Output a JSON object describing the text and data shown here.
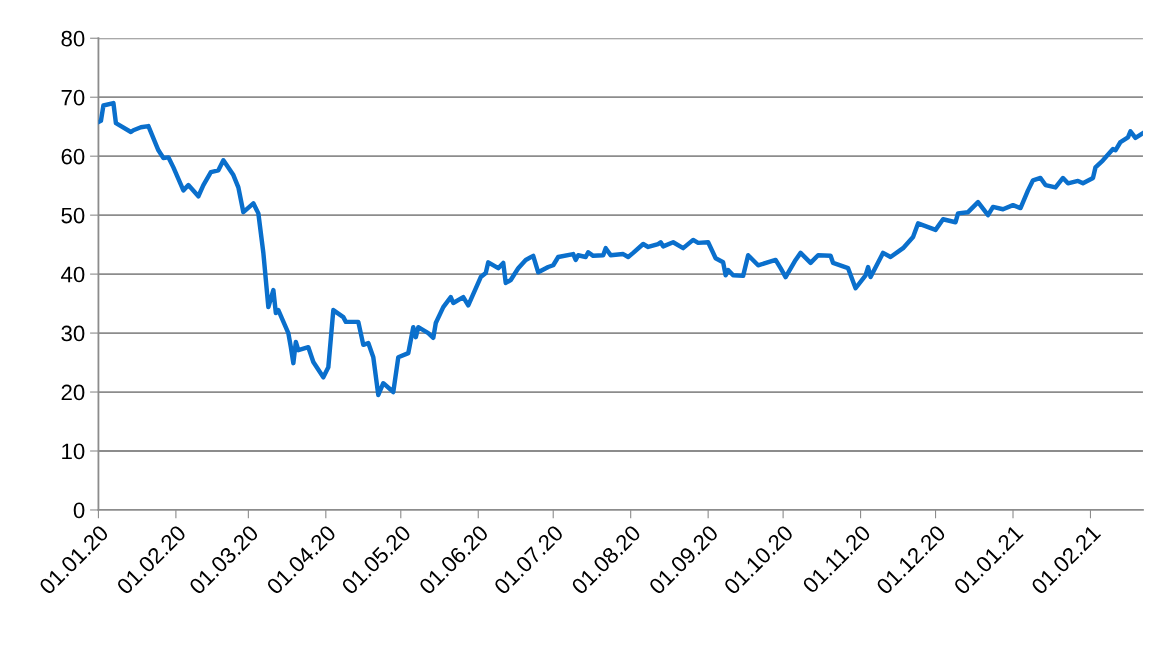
{
  "chart_data": {
    "type": "line",
    "grid": "y",
    "marker": "none",
    "line_style": "solid",
    "xlim": [
      "2020-01-01",
      "2021-02-22"
    ],
    "xticks": [
      {
        "value": "2020-01-01",
        "label": "01.01.20"
      },
      {
        "value": "2020-02-01",
        "label": "01.02.20"
      },
      {
        "value": "2020-03-01",
        "label": "01.03.20"
      },
      {
        "value": "2020-04-01",
        "label": "01.04.20"
      },
      {
        "value": "2020-05-01",
        "label": "01.05.20"
      },
      {
        "value": "2020-06-01",
        "label": "01.06.20"
      },
      {
        "value": "2020-07-01",
        "label": "01.07.20"
      },
      {
        "value": "2020-08-01",
        "label": "01.08.20"
      },
      {
        "value": "2020-09-01",
        "label": "01.09.20"
      },
      {
        "value": "2020-10-01",
        "label": "01.10.20"
      },
      {
        "value": "2020-11-01",
        "label": "01.11.20"
      },
      {
        "value": "2020-12-01",
        "label": "01.12.20"
      },
      {
        "value": "2021-01-01",
        "label": "01.01.21"
      },
      {
        "value": "2021-02-01",
        "label": "01.02.21"
      }
    ],
    "ylim": [
      0,
      80
    ],
    "yticks": [
      0,
      10,
      20,
      30,
      40,
      50,
      60,
      70,
      80
    ],
    "x": [
      "2020-01-01",
      "2020-01-02",
      "2020-01-03",
      "2020-01-07",
      "2020-01-08",
      "2020-01-14",
      "2020-01-15",
      "2020-01-18",
      "2020-01-21",
      "2020-01-25",
      "2020-01-27",
      "2020-01-29",
      "2020-01-31",
      "2020-02-04",
      "2020-02-06",
      "2020-02-10",
      "2020-02-12",
      "2020-02-15",
      "2020-02-18",
      "2020-02-20",
      "2020-02-24",
      "2020-02-26",
      "2020-02-28",
      "2020-03-03",
      "2020-03-05",
      "2020-03-07",
      "2020-03-09",
      "2020-03-11",
      "2020-03-12",
      "2020-03-13",
      "2020-03-17",
      "2020-03-18",
      "2020-03-19",
      "2020-03-20",
      "2020-03-21",
      "2020-03-25",
      "2020-03-27",
      "2020-03-31",
      "2020-04-02",
      "2020-04-04",
      "2020-04-08",
      "2020-04-09",
      "2020-04-14",
      "2020-04-16",
      "2020-04-18",
      "2020-04-20",
      "2020-04-22",
      "2020-04-24",
      "2020-04-28",
      "2020-04-30",
      "2020-05-04",
      "2020-05-06",
      "2020-05-07",
      "2020-05-08",
      "2020-05-12",
      "2020-05-14",
      "2020-05-15",
      "2020-05-18",
      "2020-05-21",
      "2020-05-22",
      "2020-05-26",
      "2020-05-28",
      "2020-06-02",
      "2020-06-04",
      "2020-06-05",
      "2020-06-09",
      "2020-06-11",
      "2020-06-12",
      "2020-06-14",
      "2020-06-17",
      "2020-06-20",
      "2020-06-23",
      "2020-06-25",
      "2020-06-29",
      "2020-07-01",
      "2020-07-03",
      "2020-07-09",
      "2020-07-10",
      "2020-07-11",
      "2020-07-14",
      "2020-07-15",
      "2020-07-17",
      "2020-07-21",
      "2020-07-22",
      "2020-07-24",
      "2020-07-29",
      "2020-07-31",
      "2020-08-02",
      "2020-08-06",
      "2020-08-08",
      "2020-08-12",
      "2020-08-13",
      "2020-08-14",
      "2020-08-18",
      "2020-08-22",
      "2020-08-26",
      "2020-08-28",
      "2020-09-01",
      "2020-09-04",
      "2020-09-07",
      "2020-09-08",
      "2020-09-09",
      "2020-09-11",
      "2020-09-15",
      "2020-09-17",
      "2020-09-21",
      "2020-09-28",
      "2020-09-30",
      "2020-10-02",
      "2020-10-06",
      "2020-10-08",
      "2020-10-12",
      "2020-10-15",
      "2020-10-20",
      "2020-10-21",
      "2020-10-27",
      "2020-10-30",
      "2020-11-03",
      "2020-11-04",
      "2020-11-05",
      "2020-11-10",
      "2020-11-13",
      "2020-11-18",
      "2020-11-22",
      "2020-11-24",
      "2020-12-01",
      "2020-12-04",
      "2020-12-09",
      "2020-12-10",
      "2020-12-14",
      "2020-12-18",
      "2020-12-22",
      "2020-12-24",
      "2020-12-28",
      "2021-01-01",
      "2021-01-04",
      "2021-01-07",
      "2021-01-09",
      "2021-01-12",
      "2021-01-14",
      "2021-01-18",
      "2021-01-21",
      "2021-01-23",
      "2021-01-27",
      "2021-01-29",
      "2021-02-02",
      "2021-02-03",
      "2021-02-06",
      "2021-02-10",
      "2021-02-11",
      "2021-02-13",
      "2021-02-16",
      "2021-02-17",
      "2021-02-19",
      "2021-02-22"
    ],
    "series": [
      {
        "color": "#0a6fcc",
        "values": [
          65.8,
          66.0,
          68.6,
          69.0,
          65.6,
          64.1,
          64.4,
          64.9,
          65.1,
          61.0,
          59.7,
          59.8,
          58.1,
          54.2,
          55.1,
          53.2,
          55.1,
          57.3,
          57.6,
          59.3,
          56.8,
          54.7,
          50.5,
          52.0,
          50.3,
          43.6,
          34.4,
          37.3,
          33.4,
          33.9,
          30.0,
          27.6,
          24.9,
          28.5,
          27.1,
          27.6,
          25.1,
          22.5,
          24.2,
          33.9,
          32.7,
          31.9,
          31.9,
          28.0,
          28.3,
          25.9,
          19.5,
          21.5,
          20.0,
          25.9,
          26.6,
          31.0,
          29.3,
          31.0,
          30.0,
          29.2,
          31.7,
          34.4,
          36.1,
          35.1,
          36.1,
          34.7,
          39.5,
          40.2,
          42.0,
          41.0,
          41.9,
          38.5,
          39.0,
          41.0,
          42.4,
          43.1,
          40.3,
          41.2,
          41.5,
          42.9,
          43.4,
          42.4,
          43.2,
          42.9,
          43.7,
          43.1,
          43.2,
          44.4,
          43.2,
          43.4,
          42.9,
          43.6,
          45.1,
          44.6,
          45.1,
          45.4,
          44.7,
          45.4,
          44.4,
          45.8,
          45.3,
          45.4,
          42.7,
          42.0,
          39.8,
          40.7,
          39.8,
          39.7,
          43.2,
          41.5,
          42.4,
          41.0,
          39.5,
          42.4,
          43.6,
          41.9,
          43.2,
          43.1,
          41.9,
          41.0,
          37.6,
          39.8,
          41.2,
          39.5,
          43.6,
          42.9,
          44.4,
          46.3,
          48.6,
          47.5,
          49.3,
          48.8,
          50.3,
          50.5,
          52.2,
          50.0,
          51.4,
          51.0,
          51.7,
          51.2,
          54.2,
          55.9,
          56.3,
          55.1,
          54.7,
          56.3,
          55.4,
          55.8,
          55.4,
          56.3,
          58.1,
          59.3,
          61.2,
          61.0,
          62.4,
          63.2,
          64.2,
          63.1,
          63.9
        ]
      }
    ]
  }
}
